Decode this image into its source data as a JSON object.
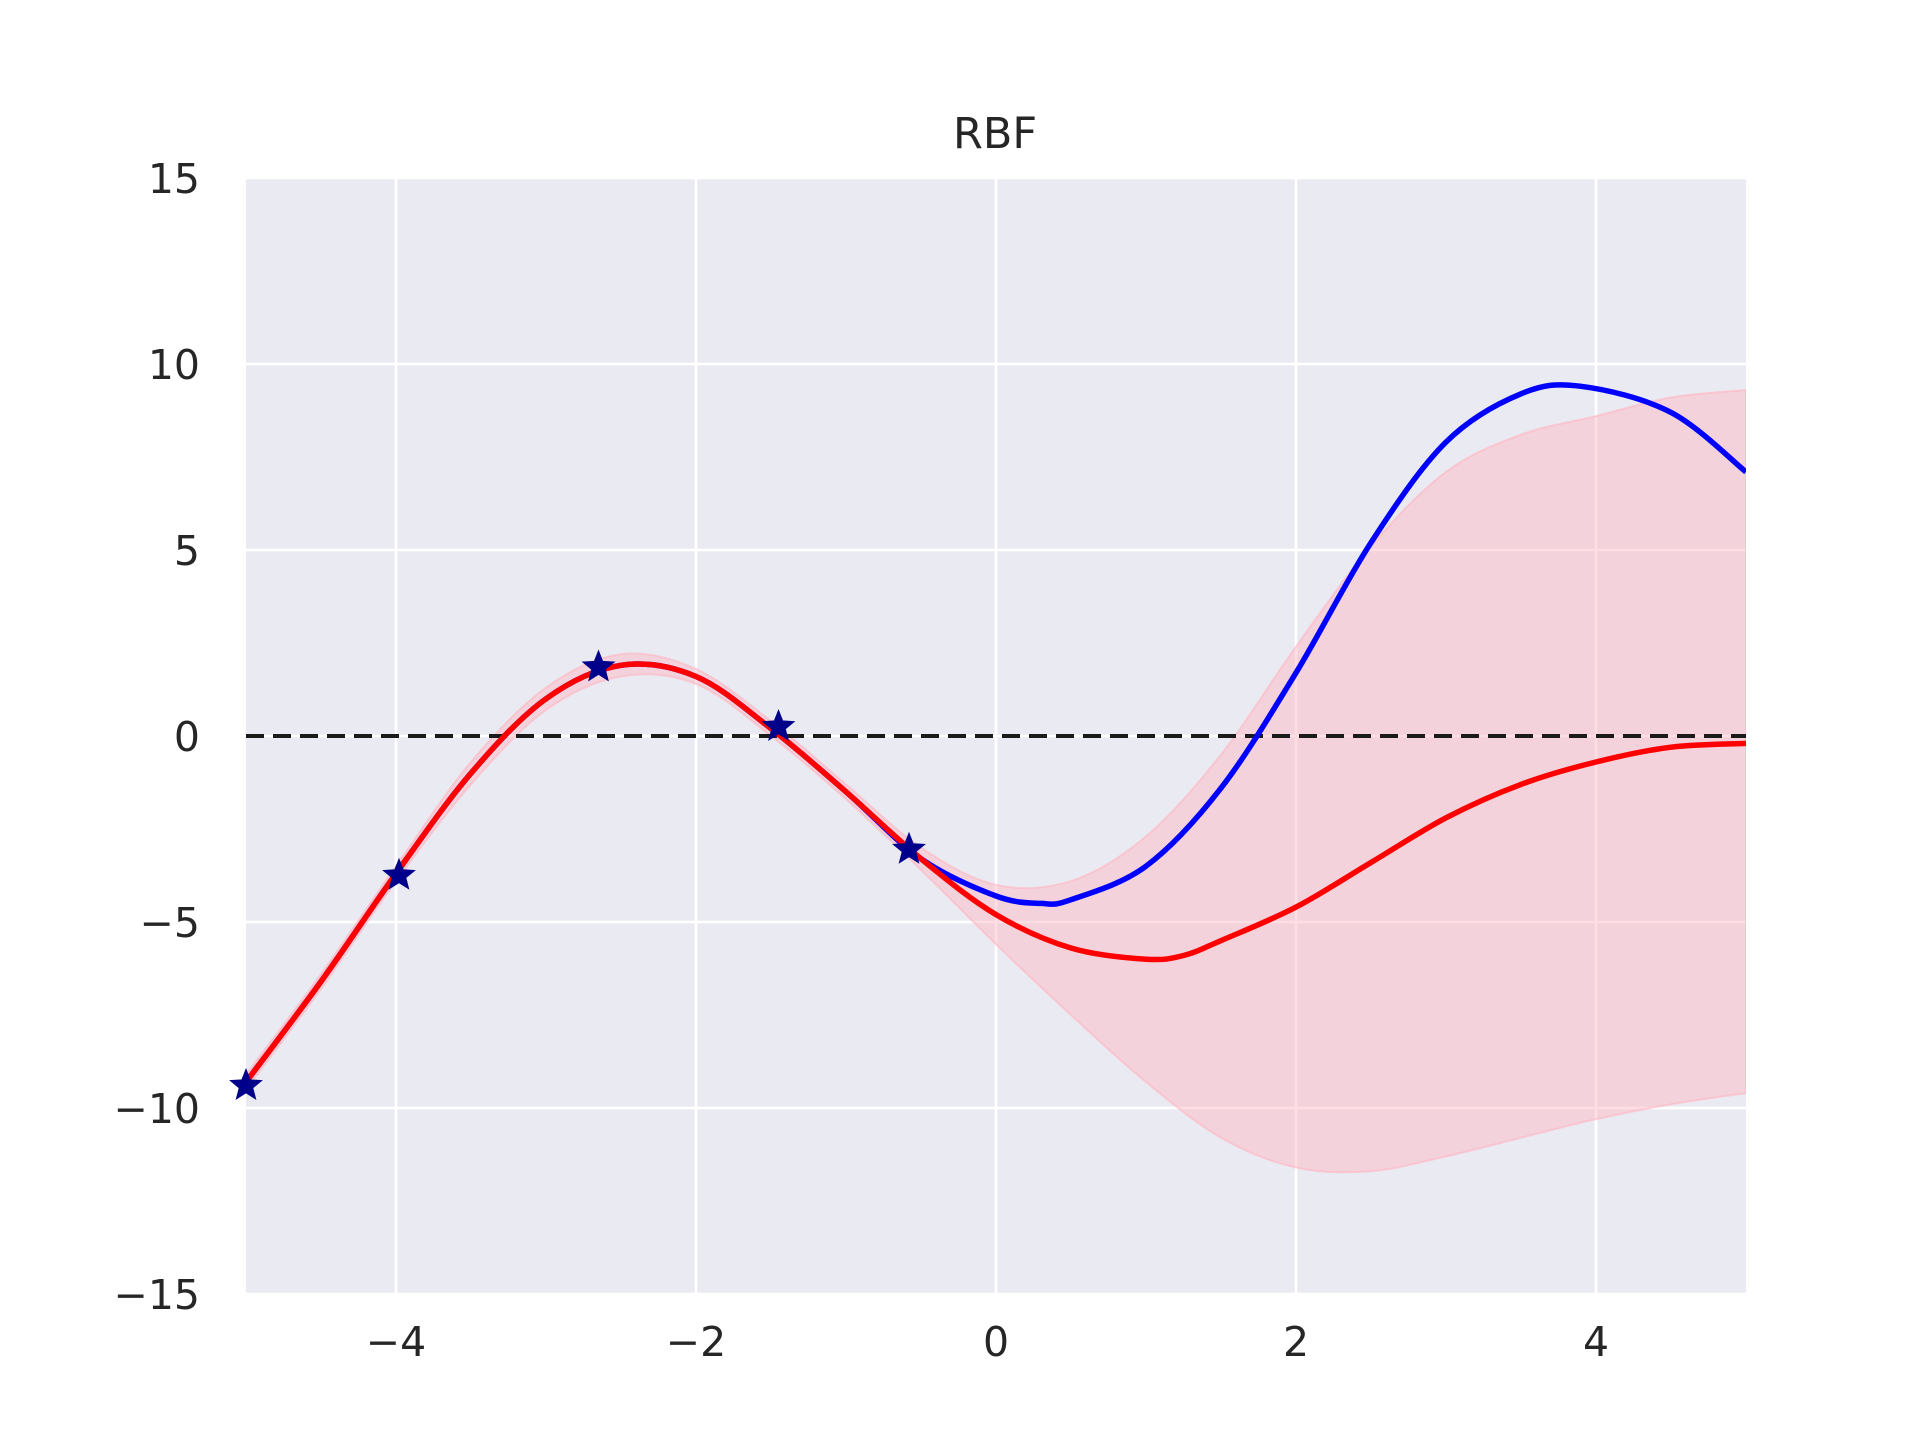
{
  "chart_data": {
    "type": "line",
    "title": "RBF",
    "xlabel": "",
    "ylabel": "",
    "xlim": [
      -5,
      5
    ],
    "ylim": [
      -15,
      15
    ],
    "x_ticks": [
      -4,
      -2,
      0,
      2,
      4
    ],
    "y_ticks": [
      -15,
      -10,
      -5,
      0,
      5,
      10,
      15
    ],
    "x_tick_labels": [
      "−4",
      "−2",
      "0",
      "2",
      "4"
    ],
    "y_tick_labels": [
      "−15",
      "−10",
      "−5",
      "0",
      "5",
      "10",
      "15"
    ],
    "grid": true,
    "legend": "none",
    "colors": {
      "background": "#eaeaf2",
      "grid": "#ffffff",
      "true_function": "#0000ff",
      "mean": "#ff0000",
      "band": "#ffb6c1",
      "observations": "#00008b",
      "zero_line": "#1a1a1a"
    },
    "true_function": {
      "x": [
        -5,
        -4.5,
        -4,
        -3.5,
        -3,
        -2.5,
        -2,
        -1.5,
        -1,
        -0.5,
        0,
        0.3,
        0.5,
        1,
        1.5,
        2,
        2.5,
        3,
        3.5,
        3.9,
        4.5,
        5
      ],
      "y": [
        -9.3,
        -6.6,
        -3.7,
        -1.0,
        1.0,
        1.9,
        1.6,
        0.2,
        -1.5,
        -3.3,
        -4.3,
        -4.5,
        -4.4,
        -3.5,
        -1.4,
        1.7,
        5.2,
        7.9,
        9.2,
        9.4,
        8.7,
        7.1
      ]
    },
    "predicted_mean": {
      "x": [
        -5,
        -4.5,
        -4,
        -3.5,
        -3,
        -2.5,
        -2,
        -1.5,
        -1,
        -0.5,
        0,
        0.5,
        1,
        1.25,
        1.5,
        2,
        2.5,
        3,
        3.5,
        4,
        4.5,
        5
      ],
      "y": [
        -9.3,
        -6.6,
        -3.7,
        -1.0,
        1.0,
        1.9,
        1.6,
        0.2,
        -1.5,
        -3.3,
        -4.8,
        -5.7,
        -6.0,
        -5.9,
        -5.5,
        -4.6,
        -3.4,
        -2.2,
        -1.3,
        -0.7,
        -0.3,
        -0.2
      ]
    },
    "confidence_band": {
      "x": [
        -5,
        -4.5,
        -4,
        -3.5,
        -3,
        -2.5,
        -2,
        -1.5,
        -1,
        -0.5,
        0,
        0.5,
        1,
        1.5,
        2,
        2.5,
        3,
        3.5,
        4,
        4.5,
        5
      ],
      "upper": [
        -9.1,
        -6.4,
        -3.5,
        -0.7,
        1.3,
        2.2,
        1.8,
        0.4,
        -1.3,
        -3.0,
        -4.0,
        -3.9,
        -2.7,
        -0.5,
        2.4,
        5.1,
        7.1,
        8.1,
        8.6,
        9.1,
        9.3
      ],
      "lower": [
        -9.5,
        -6.8,
        -3.9,
        -1.3,
        0.7,
        1.6,
        1.4,
        0.0,
        -1.7,
        -3.6,
        -5.6,
        -7.5,
        -9.3,
        -10.8,
        -11.6,
        -11.7,
        -11.3,
        -10.8,
        -10.3,
        -9.9,
        -9.6
      ]
    },
    "observations": {
      "x": [
        -5,
        -3.98,
        -2.65,
        -1.45,
        -0.58
      ],
      "y": [
        -9.4,
        -3.75,
        1.85,
        0.25,
        -3.05
      ]
    },
    "zero_line": {
      "y": 0
    }
  }
}
